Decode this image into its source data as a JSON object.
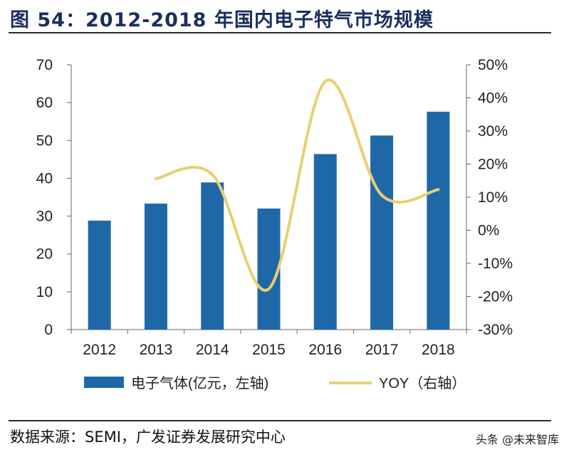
{
  "header": {
    "title": "图 54：2012-2018 年国内电子特气市场规模"
  },
  "chart_data": {
    "type": "bar",
    "categories": [
      "2012",
      "2013",
      "2014",
      "2015",
      "2016",
      "2017",
      "2018"
    ],
    "series": [
      {
        "name": "电子气体(亿元，左轴)",
        "type": "bar",
        "axis": "left",
        "color": "#1f68a8",
        "values": [
          28.8,
          33.3,
          38.9,
          32.0,
          46.4,
          51.3,
          57.6
        ]
      },
      {
        "name": "YOY（右轴）",
        "type": "line",
        "axis": "right",
        "color": "#e8cf72",
        "values": [
          null,
          15.6,
          16.8,
          -17.7,
          45.0,
          10.6,
          12.3
        ]
      }
    ],
    "y_left": {
      "min": 0,
      "max": 70,
      "step": 10,
      "tick_labels": [
        "0",
        "10",
        "20",
        "30",
        "40",
        "50",
        "60",
        "70"
      ]
    },
    "y_right": {
      "min": -30,
      "max": 50,
      "step": 10,
      "tick_labels": [
        "-30%",
        "-20%",
        "-10%",
        "0%",
        "10%",
        "20%",
        "30%",
        "40%",
        "50%"
      ]
    },
    "grid": false,
    "legend_position": "bottom"
  },
  "footer": {
    "source": "数据来源：SEMI，广发证券发展研究中心",
    "watermark": "头条 @未来智库"
  }
}
